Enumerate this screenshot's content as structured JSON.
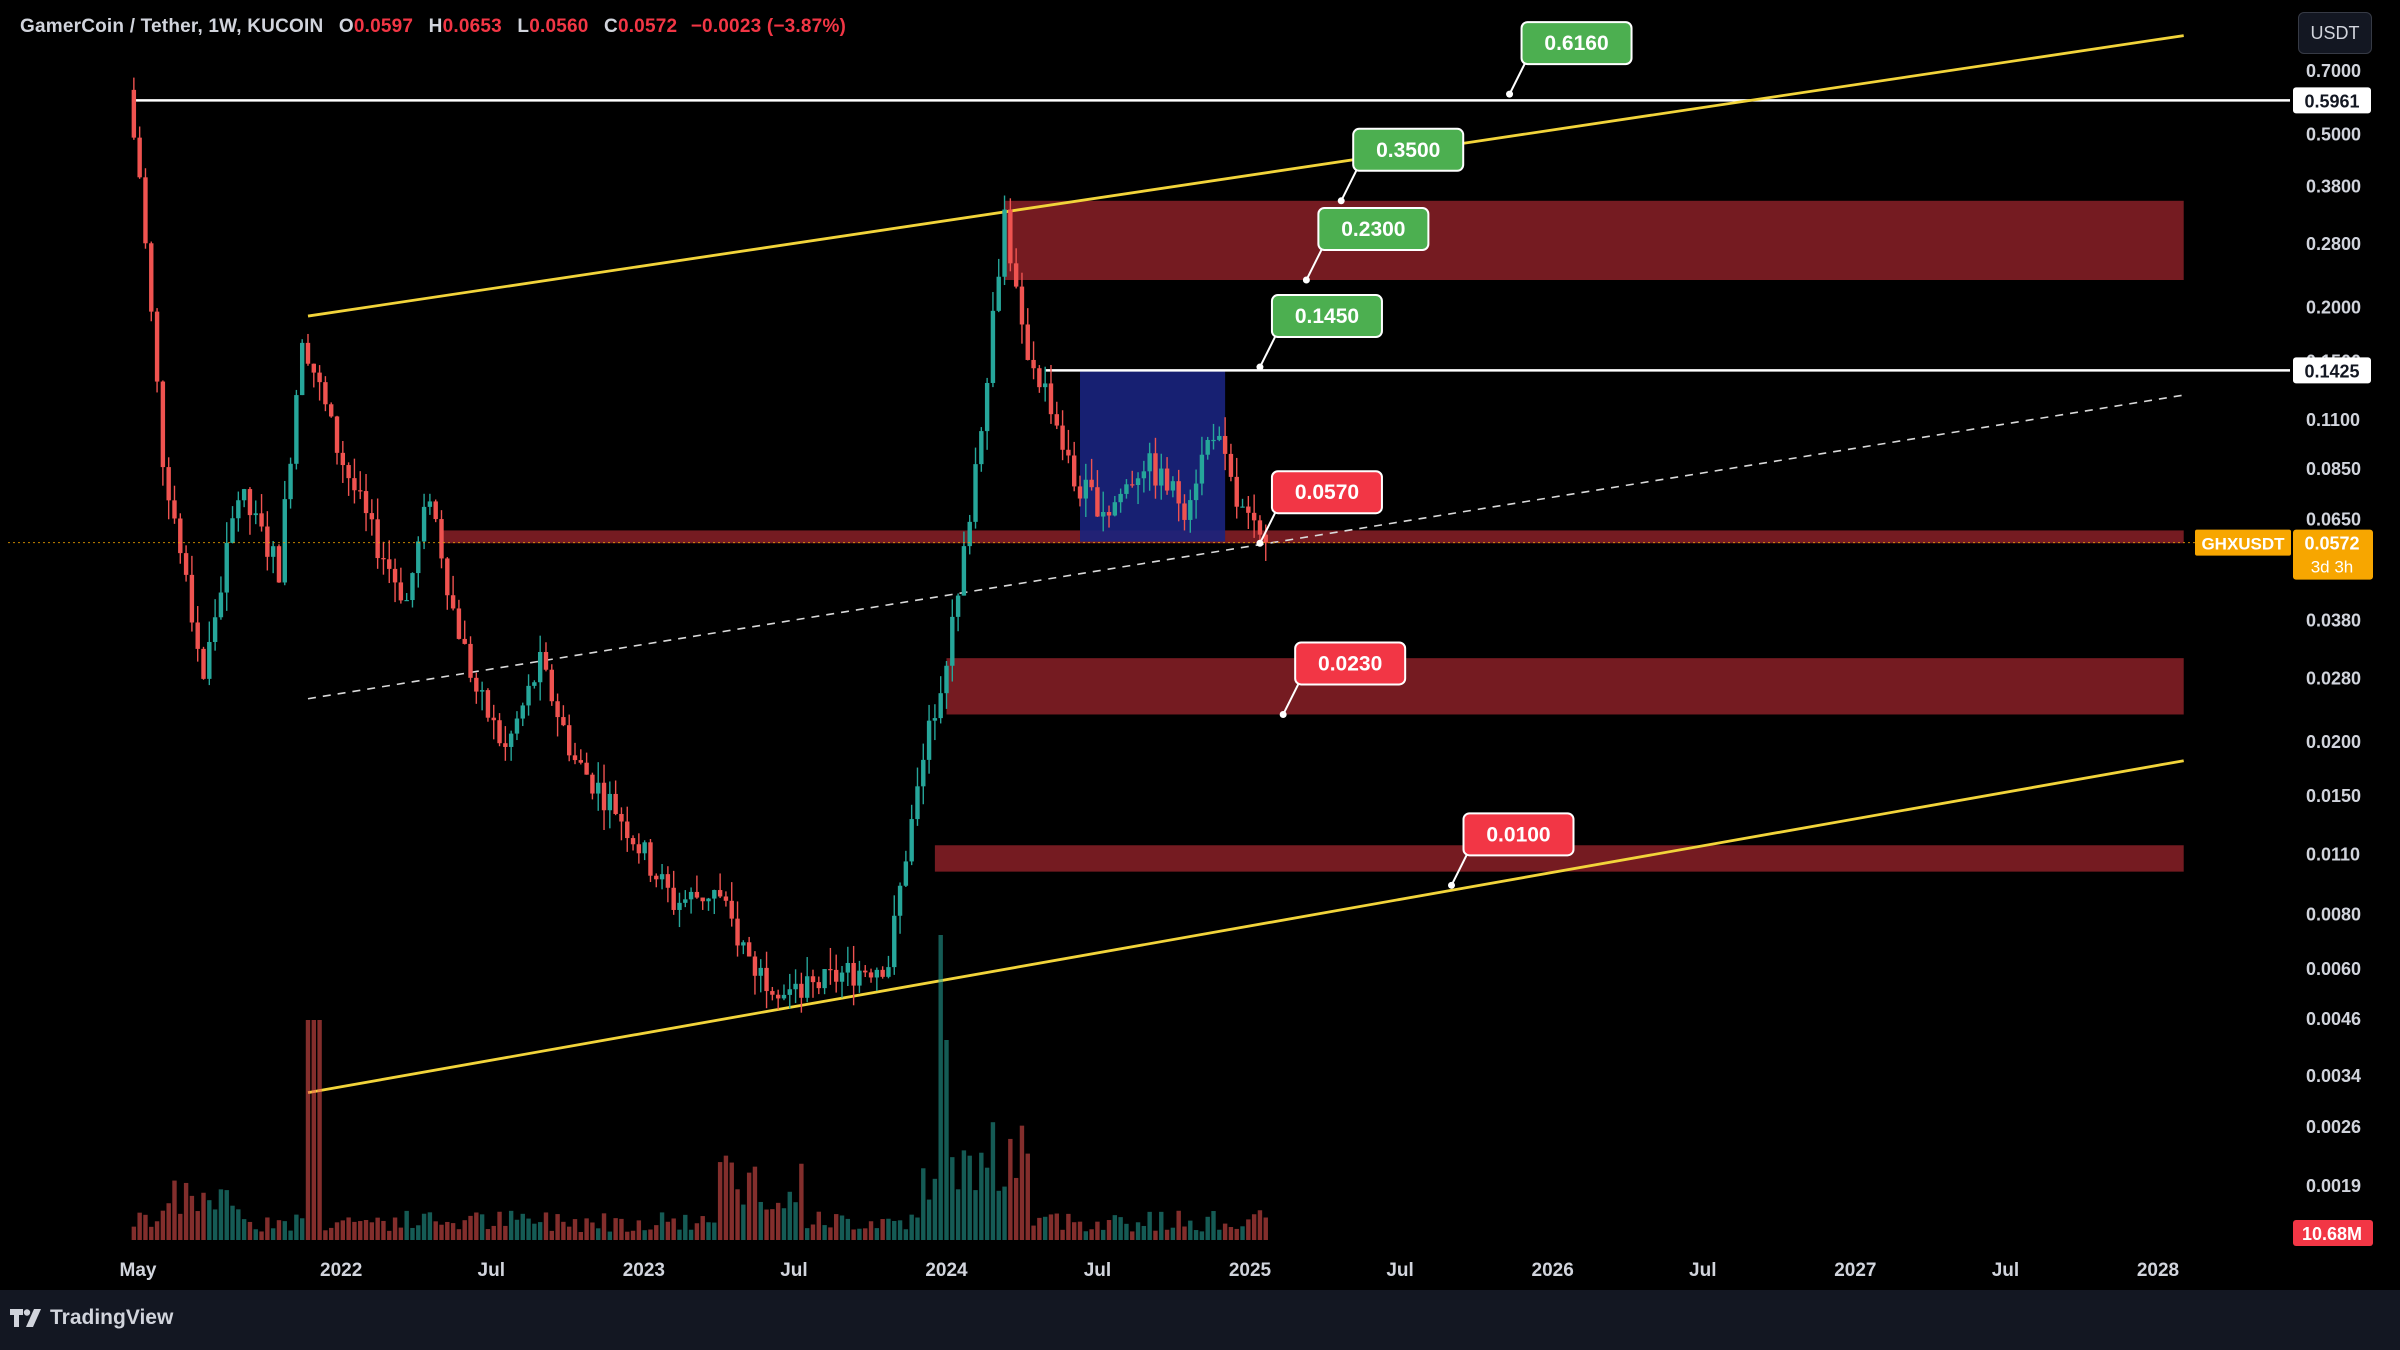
{
  "header": {
    "symbol": "GamerCoin / Tether, 1W, KUCOIN",
    "o_label": "O",
    "o_value": "0.0597",
    "h_label": "H",
    "h_value": "0.0653",
    "l_label": "L",
    "l_value": "0.0560",
    "c_label": "C",
    "c_value": "0.0572",
    "change": "−0.0023 (−3.87%)"
  },
  "currency_button": "USDT",
  "branding": "TradingView",
  "colors": {
    "up": "#26a69a",
    "down": "#ef5350",
    "trendline": "#f2d43a",
    "zone": "#7f1d24",
    "box": "#1a237e",
    "green_label": "#4caf50",
    "red_label": "#f23645",
    "price_tag": "#f7a600"
  },
  "chart_data": {
    "type": "candlestick",
    "pair": "GHXUSDT",
    "timeframe": "1W",
    "exchange": "KUCOIN",
    "y_scale": "log",
    "ylim": [
      0.0016,
      0.8
    ],
    "xlim": [
      "2021-04-19",
      "2028-06-01"
    ],
    "x_ticks": [
      {
        "date": "2021-05-01",
        "label": "May"
      },
      {
        "date": "2022-01-01",
        "label": "2022"
      },
      {
        "date": "2022-07-01",
        "label": "Jul"
      },
      {
        "date": "2023-01-01",
        "label": "2023"
      },
      {
        "date": "2023-07-01",
        "label": "Jul"
      },
      {
        "date": "2024-01-01",
        "label": "2024"
      },
      {
        "date": "2024-07-01",
        "label": "Jul"
      },
      {
        "date": "2025-01-01",
        "label": "2025"
      },
      {
        "date": "2025-07-01",
        "label": "Jul"
      },
      {
        "date": "2026-01-01",
        "label": "2026"
      },
      {
        "date": "2026-07-01",
        "label": "Jul"
      },
      {
        "date": "2027-01-01",
        "label": "2027"
      },
      {
        "date": "2027-07-01",
        "label": "Jul"
      },
      {
        "date": "2028-01-01",
        "label": "2028"
      }
    ],
    "y_ticks": [
      "0.7000",
      "0.5000",
      "0.3800",
      "0.2800",
      "0.2000",
      "0.1500",
      "0.1100",
      "0.0850",
      "0.0650",
      "0.0380",
      "0.0280",
      "0.0200",
      "0.0150",
      "0.0110",
      "0.0080",
      "0.0060",
      "0.0046",
      "0.0034",
      "0.0026",
      "0.0019"
    ],
    "price_path": [
      [
        "2021-04-26",
        0.6
      ],
      [
        "2021-05-10",
        0.4
      ],
      [
        "2021-06-07",
        0.09
      ],
      [
        "2021-07-26",
        0.028
      ],
      [
        "2021-09-06",
        0.075
      ],
      [
        "2021-10-25",
        0.05
      ],
      [
        "2021-11-22",
        0.175
      ],
      [
        "2022-01-03",
        0.095
      ],
      [
        "2022-02-14",
        0.06
      ],
      [
        "2022-03-28",
        0.042
      ],
      [
        "2022-04-25",
        0.075
      ],
      [
        "2022-05-23",
        0.04
      ],
      [
        "2022-06-20",
        0.026
      ],
      [
        "2022-07-25",
        0.019
      ],
      [
        "2022-09-05",
        0.03
      ],
      [
        "2022-10-17",
        0.018
      ],
      [
        "2022-12-05",
        0.014
      ],
      [
        "2023-02-13",
        0.0085
      ],
      [
        "2023-04-03",
        0.009
      ],
      [
        "2023-05-22",
        0.006
      ],
      [
        "2023-07-10",
        0.0052
      ],
      [
        "2023-09-04",
        0.0058
      ],
      [
        "2023-10-30",
        0.0062
      ],
      [
        "2023-11-20",
        0.011
      ],
      [
        "2023-12-18",
        0.021
      ],
      [
        "2024-01-22",
        0.042
      ],
      [
        "2024-02-19",
        0.11
      ],
      [
        "2024-03-18",
        0.33
      ],
      [
        "2024-04-08",
        0.17
      ],
      [
        "2024-05-13",
        0.12
      ],
      [
        "2024-06-10",
        0.078
      ],
      [
        "2024-07-22",
        0.068
      ],
      [
        "2024-09-02",
        0.088
      ],
      [
        "2024-10-21",
        0.07
      ],
      [
        "2024-11-25",
        0.105
      ],
      [
        "2024-12-23",
        0.07
      ],
      [
        "2025-01-20",
        0.0572
      ]
    ],
    "last_price": "0.0572",
    "last_price_label": "GHXUSDT",
    "countdown": "3d 3h",
    "volume_label": "10.68M",
    "horizontal_lines": [
      {
        "price": 0.5961,
        "label": "0.5961"
      },
      {
        "price": 0.1425,
        "label": "0.1425"
      }
    ],
    "trendlines": [
      {
        "style": "solid",
        "color": "yellow",
        "from": [
          "2021-11-22",
          0.19
        ],
        "to": [
          "2024-03-18",
          0.345
        ],
        "extended_to": [
          "2028-02-01",
          0.84
        ]
      },
      {
        "style": "solid",
        "color": "yellow",
        "from": [
          "2021-11-22",
          0.0031
        ],
        "to": [
          "2023-12-18",
          0.0052
        ],
        "extended_to": [
          "2028-02-01",
          0.018
        ]
      },
      {
        "style": "dashed",
        "color": "white",
        "from": [
          "2021-11-22",
          0.025
        ],
        "to": [
          "2028-02-01",
          0.125
        ]
      }
    ],
    "zones": [
      {
        "from": "2024-03-11",
        "to": "2028-02-01",
        "low": 0.23,
        "high": 0.35
      },
      {
        "from": "2022-05-02",
        "to": "2028-02-01",
        "low": 0.057,
        "high": 0.061
      },
      {
        "from": "2024-01-01",
        "to": "2028-02-01",
        "low": 0.023,
        "high": 0.031
      },
      {
        "from": "2023-12-18",
        "to": "2028-02-01",
        "low": 0.01,
        "high": 0.0115
      }
    ],
    "consolidation_box": {
      "from": "2024-06-10",
      "to": "2024-12-02",
      "low": 0.0575,
      "high": 0.142
    },
    "targets": [
      {
        "label": "0.6160",
        "kind": "up",
        "anchor": [
          "2025-11-10",
          0.616
        ]
      },
      {
        "label": "0.3500",
        "kind": "up",
        "anchor": [
          "2025-04-21",
          0.35
        ]
      },
      {
        "label": "0.2300",
        "kind": "up",
        "anchor": [
          "2025-03-10",
          0.23
        ]
      },
      {
        "label": "0.1450",
        "kind": "up",
        "anchor": [
          "2025-01-13",
          0.145
        ]
      },
      {
        "label": "0.0570",
        "kind": "down",
        "anchor": [
          "2025-01-13",
          0.057
        ]
      },
      {
        "label": "0.0230",
        "kind": "down",
        "anchor": [
          "2025-02-10",
          0.023
        ]
      },
      {
        "label": "0.0100",
        "kind": "down",
        "anchor": [
          "2025-09-01",
          0.0093
        ]
      }
    ]
  }
}
